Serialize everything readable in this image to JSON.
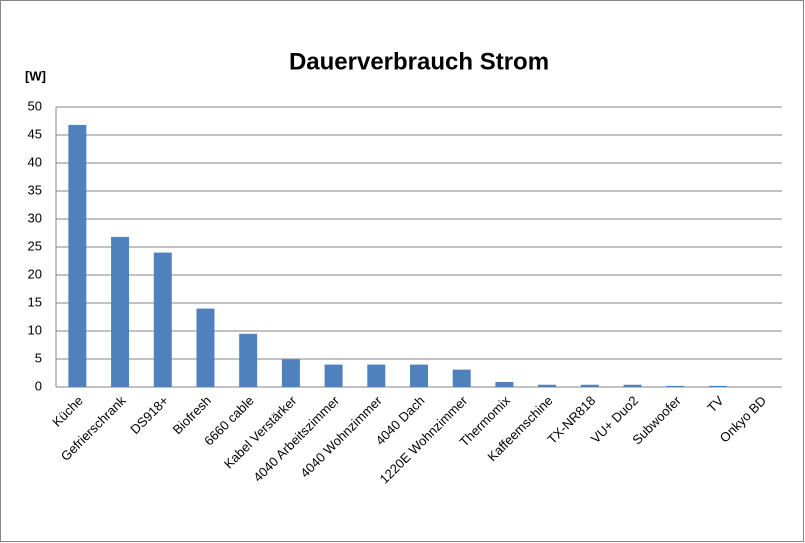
{
  "chart_data": {
    "type": "bar",
    "title": "Dauerverbrauch Strom",
    "y_label": "[W]",
    "categories": [
      "Küche",
      "Gefrierschrank",
      "DS918+",
      "Biofresh",
      "6660 cable",
      "Kabel Verstärker",
      "4040 Arbeitszimmer",
      "4040 Wohnzimmer",
      "4040 Dach",
      "1220E Wohnzimmer",
      "Thermomix",
      "Kaffeemschine",
      "TX-NR818",
      "VU+ Duo2",
      "Subwoofer",
      "TV",
      "Onkyo BD"
    ],
    "values": [
      46.8,
      26.8,
      24,
      14,
      9.5,
      4.9,
      4,
      4,
      4,
      3.1,
      0.9,
      0.4,
      0.4,
      0.4,
      0.2,
      0.2,
      0
    ],
    "color": "#4f81bd",
    "ylim": [
      0,
      50
    ],
    "yticks": [
      0,
      5,
      10,
      15,
      20,
      25,
      30,
      35,
      40,
      45,
      50
    ],
    "grid": true
  }
}
